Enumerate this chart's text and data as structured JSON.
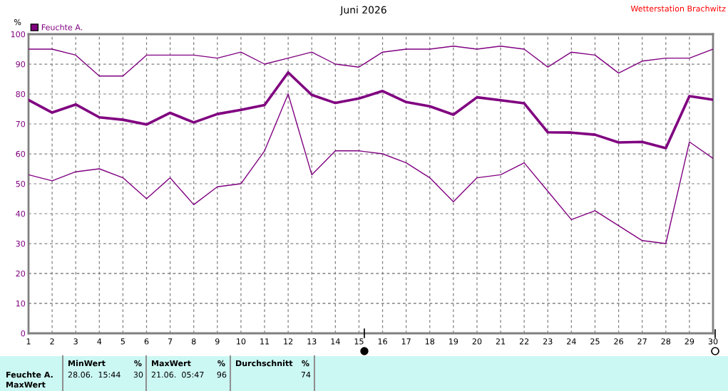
{
  "chart_data": {
    "type": "line",
    "title": "Juni 2026",
    "ylabel": "%",
    "annotations": [
      "Wetterstation Brachwitz",
      "MinWert",
      "%",
      "28.06.  15:44",
      "30",
      "MaxWert",
      "%",
      "21.06.  05:47",
      "96",
      "Durchschnitt",
      "%",
      "74",
      "Feuchte A.",
      "MaxWert"
    ],
    "x": [
      1,
      2,
      3,
      4,
      5,
      6,
      7,
      8,
      9,
      10,
      11,
      12,
      13,
      14,
      15,
      16,
      17,
      18,
      19,
      20,
      21,
      22,
      23,
      24,
      25,
      26,
      27,
      28,
      29,
      30
    ],
    "series": [
      {
        "name": "Feuchte A.",
        "color": "#800080",
        "values": [
          78.0,
          73.8,
          76.5,
          72.2,
          71.4,
          69.8,
          73.7,
          70.5,
          73.3,
          74.7,
          76.3,
          87.2,
          79.7,
          77.0,
          78.5,
          81.0,
          77.3,
          75.9,
          73.1,
          78.9,
          77.9,
          76.9,
          67.2,
          67.1,
          66.4,
          63.8,
          64.0,
          61.9,
          79.3,
          78.1
        ]
      },
      {
        "color": "#800080",
        "values": [
          95,
          95,
          93,
          86,
          86,
          93,
          93,
          93,
          92,
          94,
          90,
          92,
          94,
          90,
          89,
          94,
          95,
          95,
          96,
          95,
          96,
          95,
          89,
          94,
          93,
          87,
          91,
          92,
          92,
          95
        ]
      },
      {
        "color": "#800080",
        "values": [
          53,
          51,
          54,
          55,
          52,
          45,
          52,
          43,
          49,
          50,
          61,
          80,
          53,
          61,
          61,
          60,
          57,
          52,
          44,
          52,
          53,
          57,
          47.5,
          38,
          41,
          36,
          31,
          30,
          64,
          58.5
        ]
      }
    ],
    "xlim": [
      1,
      30
    ],
    "xticks": [
      1,
      2,
      3,
      4,
      5,
      6,
      7,
      8,
      9,
      10,
      11,
      12,
      13,
      14,
      15,
      16,
      17,
      18,
      19,
      20,
      21,
      22,
      23,
      24,
      25,
      26,
      27,
      28,
      29,
      30
    ],
    "ylim": [
      0,
      100
    ],
    "yticks": [
      0,
      10,
      20,
      30,
      40,
      50,
      60,
      70,
      80,
      90,
      100
    ],
    "grid": true,
    "legend": "top left"
  }
}
